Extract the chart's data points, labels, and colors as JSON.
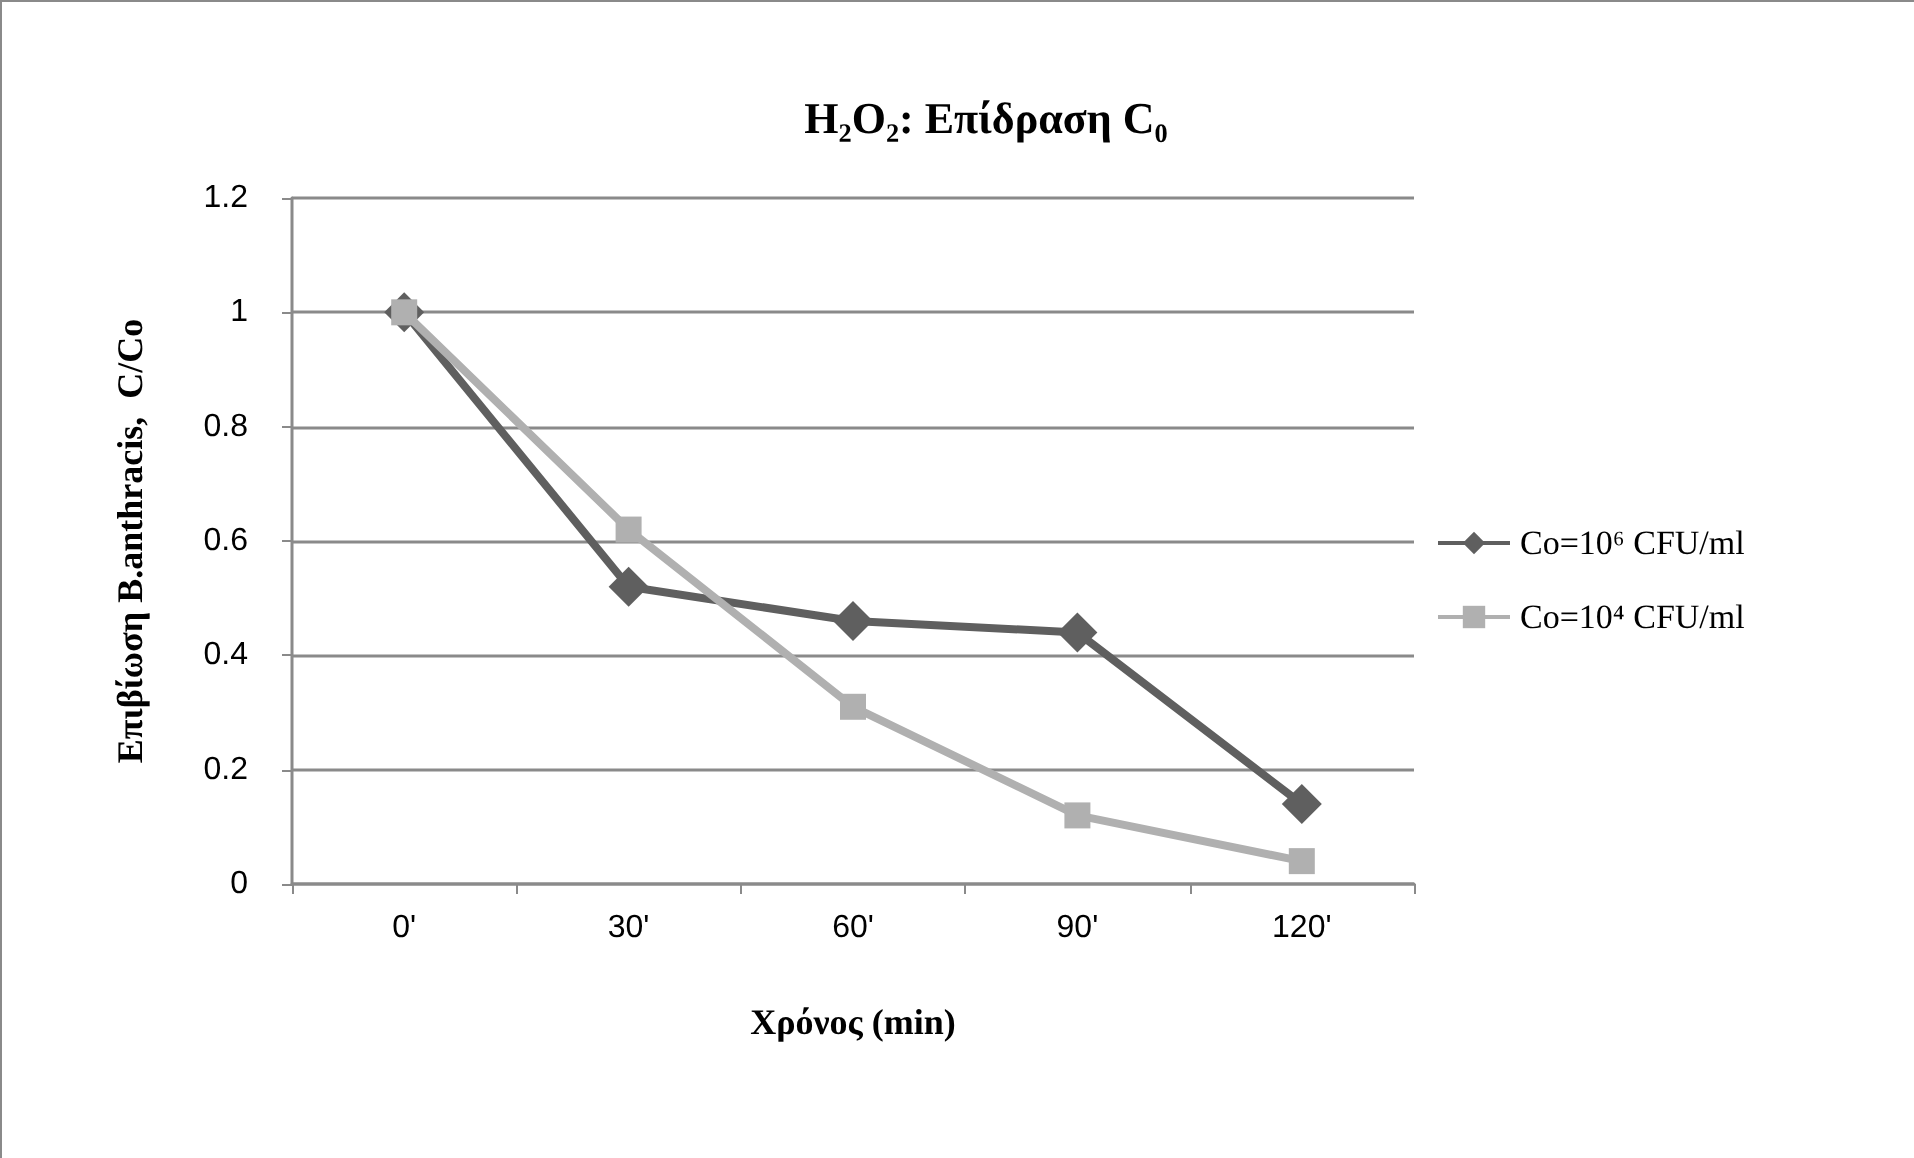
{
  "chart_data": {
    "type": "line",
    "title": "H₂O₂: Επίδραση C₀",
    "xlabel": "Χρόνος (min)",
    "ylabel": "Επιβίωση B.anthracis,  C/Co",
    "categories": [
      "0'",
      "30'",
      "60'",
      "90'",
      "120'"
    ],
    "series": [
      {
        "name": "Co=10⁶ CFU/ml",
        "color": "#5f5f5f",
        "marker": "diamond",
        "values": [
          1,
          0.52,
          0.46,
          0.44,
          0.14
        ]
      },
      {
        "name": "Co=10⁴ CFU/ml",
        "color": "#b0b0b0",
        "marker": "square",
        "values": [
          1,
          0.62,
          0.31,
          0.12,
          0.04
        ]
      }
    ],
    "ylim": [
      0,
      1.2
    ],
    "yticks": [
      0,
      0.2,
      0.4,
      0.6,
      0.8,
      1,
      1.2
    ],
    "grid": "y",
    "legend": "right"
  }
}
